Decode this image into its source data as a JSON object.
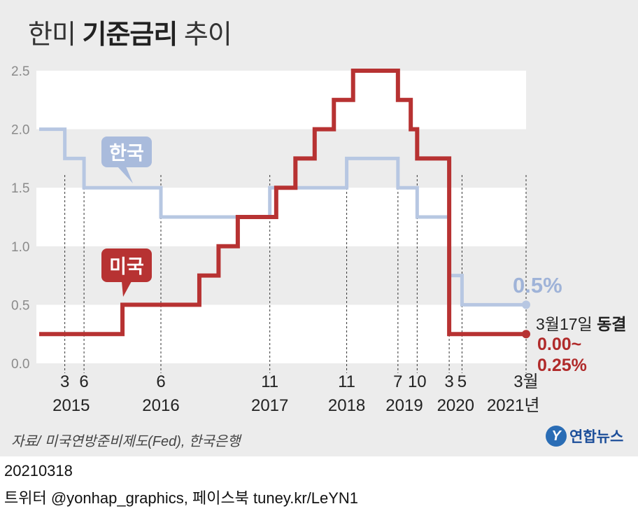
{
  "header": {
    "title_prefix": "한미 ",
    "title_bold": "기준금리",
    "title_suffix": " 추이"
  },
  "chart_data": {
    "type": "line",
    "step": true,
    "ylim": [
      0,
      2.5
    ],
    "yticks": [
      "2.5",
      "2.0",
      "1.5",
      "1.0",
      "0.5",
      "0.0"
    ],
    "grid": "alternating horizontal bands",
    "series": [
      {
        "name": "한국",
        "color": "#b7c7e2",
        "points": [
          [
            "2014-11",
            2.0
          ],
          [
            "2015-03",
            1.75
          ],
          [
            "2015-06",
            1.5
          ],
          [
            "2016-06",
            1.25
          ],
          [
            "2017-11",
            1.5
          ],
          [
            "2018-11",
            1.75
          ],
          [
            "2019-07",
            1.5
          ],
          [
            "2019-10",
            1.25
          ],
          [
            "2020-03",
            0.75
          ],
          [
            "2020-05",
            0.5
          ],
          [
            "2021-03",
            0.5
          ]
        ]
      },
      {
        "name": "미국",
        "color": "#b73232",
        "points": [
          [
            "2014-11",
            0.25
          ],
          [
            "2015-12",
            0.5
          ],
          [
            "2016-12",
            0.75
          ],
          [
            "2017-03",
            1.0
          ],
          [
            "2017-06",
            1.25
          ],
          [
            "2017-12",
            1.5
          ],
          [
            "2018-03",
            1.75
          ],
          [
            "2018-06",
            2.0
          ],
          [
            "2018-09",
            2.25
          ],
          [
            "2018-12",
            2.5
          ],
          [
            "2019-07",
            2.25
          ],
          [
            "2019-09",
            2.0
          ],
          [
            "2019-10",
            1.75
          ],
          [
            "2020-03",
            0.25
          ],
          [
            "2021-03",
            0.25
          ]
        ]
      }
    ],
    "month_labels": [
      "3",
      "6",
      "6",
      "11",
      "11",
      "7",
      "10",
      "3",
      "5",
      "3월"
    ],
    "year_labels": [
      "2015",
      "2016",
      "2017",
      "2018",
      "2019",
      "2020",
      "2021년"
    ],
    "annotations": {
      "korea_value": "0.5%",
      "freeze_date": "3월17일 ",
      "freeze_word": "동결",
      "us_value_line1": "0.00~",
      "us_value_line2": "0.25%"
    }
  },
  "source": "자료/ 미국연방준비제도(Fed), 한국은행",
  "logo_text": "연합뉴스",
  "logo_mark": "Y",
  "footer": {
    "date": "20210318",
    "credit": "트위터 @yonhap_graphics, 페이스북 tuney.kr/LeYN1"
  }
}
